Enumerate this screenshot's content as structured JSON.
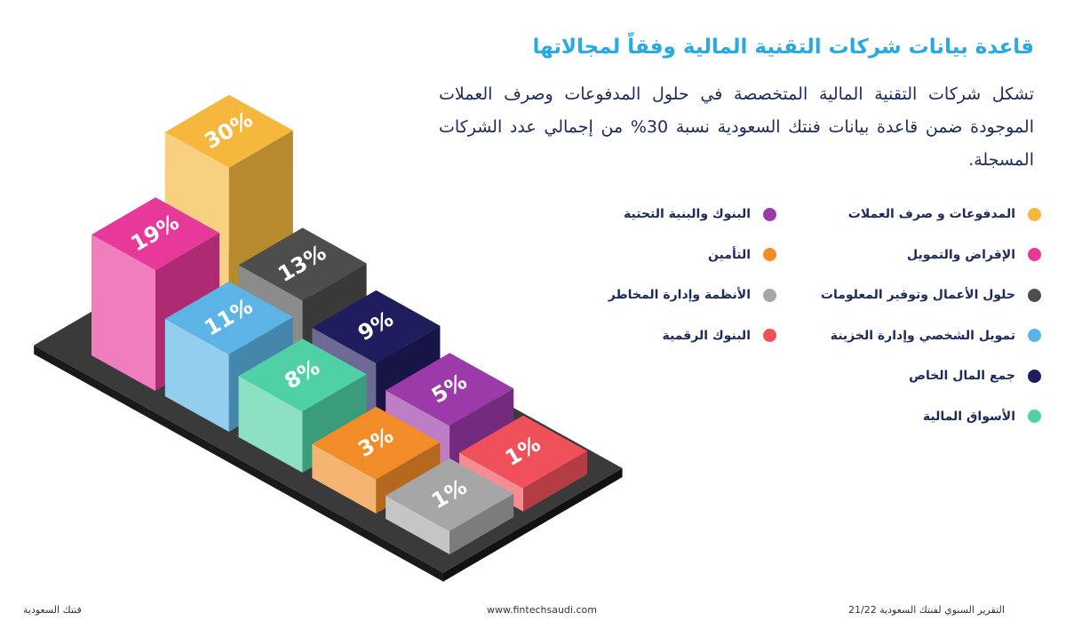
{
  "chart_data": {
    "type": "isometric-bar",
    "title": "قاعدة بيانات شركات التقنية المالية وفقاً لمجالاتها",
    "subtitle": "تشكل شركات التقنية المالية المتخصصة في حلول المدفوعات وصرف العملات الموجودة ضمن قاعدة بيانات فنتك السعودية نسبة 30% من إجمالي عدد الشركات المسجلة.",
    "categories": [
      "المدفوعات و صرف العملات",
      "الإقراض والتمويل",
      "حلول الأعمال وتوفير المعلومات",
      "تمويل الشخصي وإدارة الخزينة",
      "جمع المال الخاص",
      "الأسواق المالية",
      "البنوك والبنية التحتية",
      "التأمين",
      "الأنظمة وإدارة المخاطر",
      "البنوك الرقمية"
    ],
    "values": [
      30,
      19,
      13,
      11,
      9,
      8,
      5,
      3,
      1,
      1
    ],
    "value_labels": [
      "30%",
      "19%",
      "13%",
      "11%",
      "9%",
      "8%",
      "5%",
      "3%",
      "1%",
      "1%"
    ],
    "colors": [
      "#f5b83d",
      "#e8399a",
      "#4d4d4d",
      "#5bb4e5",
      "#1f1d5e",
      "#4fd1a5",
      "#9b3aa8",
      "#f28c28",
      "#a6a6a6",
      "#f0505a"
    ]
  },
  "footer": {
    "left": "فنتك السعودية",
    "center": "www.fintechsaudi.com",
    "right": "التقرير السنوي لفنتك السعودية 21/22"
  }
}
